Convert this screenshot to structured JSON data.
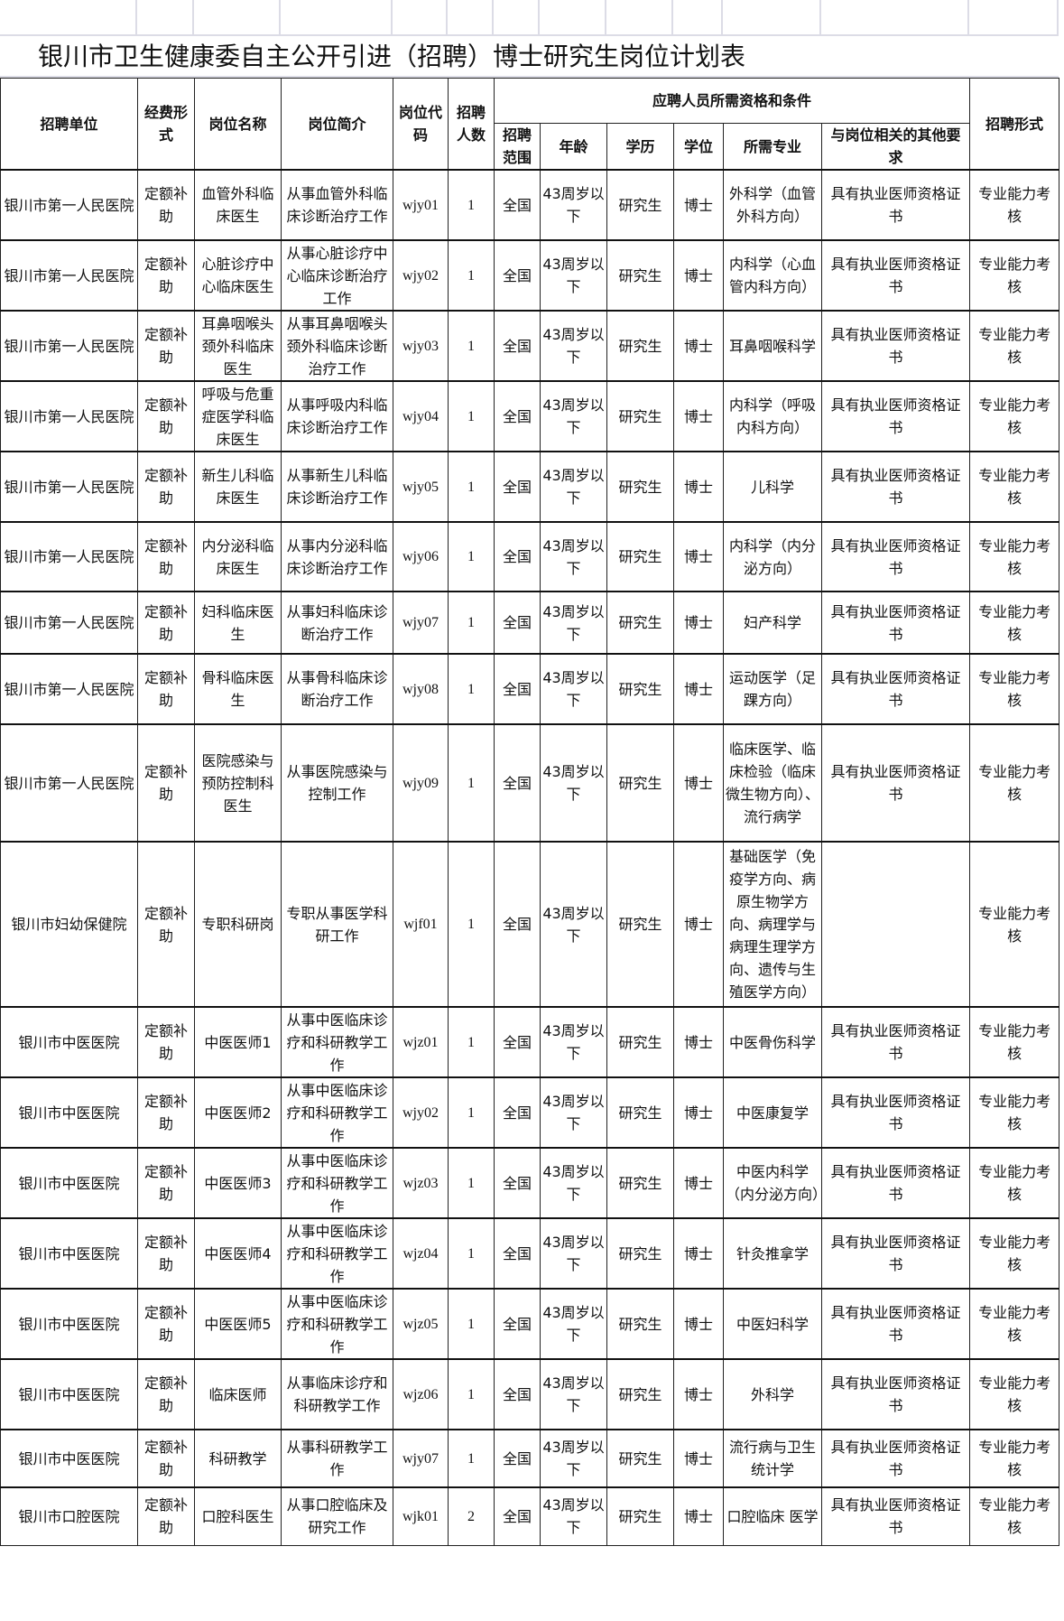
{
  "title": "银川市卫生健康委自主公开引进（招聘）博士研究生岗位计划表",
  "headers": {
    "unit": "招聘单位",
    "funding": "经费形式",
    "post": "岗位名称",
    "intro": "岗位简介",
    "code": "岗位代码",
    "count": "招聘人数",
    "group": "应聘人员所需资格和条件",
    "scope": "招聘范围",
    "age": "年龄",
    "edu": "学历",
    "degree": "学位",
    "major": "所需专业",
    "other": "与岗位相关的其他要求",
    "method": "招聘形式"
  },
  "rows": [
    [
      "银川市第一人民医院",
      "定额补助",
      "血管外科临床医生",
      "从事血管外科临床诊断治疗工作",
      "wjy01",
      "1",
      "全国",
      "43周岁以下",
      "研究生",
      "博士",
      "外科学（血管外科方向）",
      "具有执业医师资格证书",
      "专业能力考核"
    ],
    [
      "银川市第一人民医院",
      "定额补助",
      "心脏诊疗中心临床医生",
      "从事心脏诊疗中心临床诊断治疗工作",
      "wjy02",
      "1",
      "全国",
      "43周岁以下",
      "研究生",
      "博士",
      "内科学（心血管内科方向）",
      "具有执业医师资格证书",
      "专业能力考核"
    ],
    [
      "银川市第一人民医院",
      "定额补助",
      "耳鼻咽喉头颈外科临床医生",
      "从事耳鼻咽喉头颈外科临床诊断治疗工作",
      "wjy03",
      "1",
      "全国",
      "43周岁以下",
      "研究生",
      "博士",
      "耳鼻咽喉科学",
      "具有执业医师资格证书",
      "专业能力考核"
    ],
    [
      "银川市第一人民医院",
      "定额补助",
      "呼吸与危重症医学科临床医生",
      "从事呼吸内科临床诊断治疗工作",
      "wjy04",
      "1",
      "全国",
      "43周岁以下",
      "研究生",
      "博士",
      "内科学（呼吸内科方向）",
      "具有执业医师资格证书",
      "专业能力考核"
    ],
    [
      "银川市第一人民医院",
      "定额补助",
      "新生儿科临床医生",
      "从事新生儿科临床诊断治疗工作",
      "wjy05",
      "1",
      "全国",
      "43周岁以下",
      "研究生",
      "博士",
      "儿科学",
      "具有执业医师资格证书",
      "专业能力考核"
    ],
    [
      "银川市第一人民医院",
      "定额补助",
      "内分泌科临床医生",
      "从事内分泌科临床诊断治疗工作",
      "wjy06",
      "1",
      "全国",
      "43周岁以下",
      "研究生",
      "博士",
      "内科学（内分泌方向）",
      "具有执业医师资格证书",
      "专业能力考核"
    ],
    [
      "银川市第一人民医院",
      "定额补助",
      "妇科临床医生",
      "从事妇科临床诊断治疗工作",
      "wjy07",
      "1",
      "全国",
      "43周岁以下",
      "研究生",
      "博士",
      "妇产科学",
      "具有执业医师资格证书",
      "专业能力考核"
    ],
    [
      "银川市第一人民医院",
      "定额补助",
      "骨科临床医生",
      "从事骨科临床诊断治疗工作",
      "wjy08",
      "1",
      "全国",
      "43周岁以下",
      "研究生",
      "博士",
      "运动医学（足踝方向）",
      "具有执业医师资格证书",
      "专业能力考核"
    ],
    [
      "银川市第一人民医院",
      "定额补助",
      "医院感染与预防控制科医生",
      "从事医院感染与控制工作",
      "wjy09",
      "1",
      "全国",
      "43周岁以下",
      "研究生",
      "博士",
      "临床医学、临床检验（临床微生物方向）、流行病学",
      "具有执业医师资格证书",
      "专业能力考核"
    ],
    [
      "银川市妇幼保健院",
      "定额补助",
      "专职科研岗",
      "专职从事医学科研工作",
      "wjf01",
      "1",
      "全国",
      "43周岁以下",
      "研究生",
      "博士",
      "基础医学（免疫学方向、病原生物学方向、病理学与病理生理学方向、遗传与生殖医学方向）",
      "",
      "专业能力考核"
    ],
    [
      "银川市中医医院",
      "定额补助",
      "中医医师1",
      "从事中医临床诊疗和科研教学工作",
      "wjz01",
      "1",
      "全国",
      "43周岁以下",
      "研究生",
      "博士",
      "中医骨伤科学",
      "具有执业医师资格证书",
      "专业能力考核"
    ],
    [
      "银川市中医医院",
      "定额补助",
      "中医医师2",
      "从事中医临床诊疗和科研教学工作",
      "wjy02",
      "1",
      "全国",
      "43周岁以下",
      "研究生",
      "博士",
      "中医康复学",
      "具有执业医师资格证书",
      "专业能力考核"
    ],
    [
      "银川市中医医院",
      "定额补助",
      "中医医师3",
      "从事中医临床诊疗和科研教学工作",
      "wjz03",
      "1",
      "全国",
      "43周岁以下",
      "研究生",
      "博士",
      "中医内科学（内分泌方向）",
      "具有执业医师资格证书",
      "专业能力考核"
    ],
    [
      "银川市中医医院",
      "定额补助",
      "中医医师4",
      "从事中医临床诊疗和科研教学工作",
      "wjz04",
      "1",
      "全国",
      "43周岁以下",
      "研究生",
      "博士",
      "针灸推拿学",
      "具有执业医师资格证书",
      "专业能力考核"
    ],
    [
      "银川市中医医院",
      "定额补助",
      "中医医师5",
      "从事中医临床诊疗和科研教学工作",
      "wjz05",
      "1",
      "全国",
      "43周岁以下",
      "研究生",
      "博士",
      "中医妇科学",
      "具有执业医师资格证书",
      "专业能力考核"
    ],
    [
      "银川市中医医院",
      "定额补助",
      "临床医师",
      "从事临床诊疗和科研教学工作",
      "wjz06",
      "1",
      "全国",
      "43周岁以下",
      "研究生",
      "博士",
      "外科学",
      "具有执业医师资格证书",
      "专业能力考核"
    ],
    [
      "银川市中医医院",
      "定额补助",
      "科研教学",
      "从事科研教学工作",
      "wjy07",
      "1",
      "全国",
      "43周岁以下",
      "研究生",
      "博士",
      "流行病与卫生统计学",
      "具有执业医师资格证书",
      "专业能力考核"
    ],
    [
      "银川市口腔医院",
      "定额补助",
      "口腔科医生",
      "从事口腔临床及研究工作",
      "wjk01",
      "2",
      "全国",
      "43周岁以下",
      "研究生",
      "博士",
      "口腔临床 医学",
      "具有执业医师资格证书",
      "专业能力考核"
    ]
  ]
}
